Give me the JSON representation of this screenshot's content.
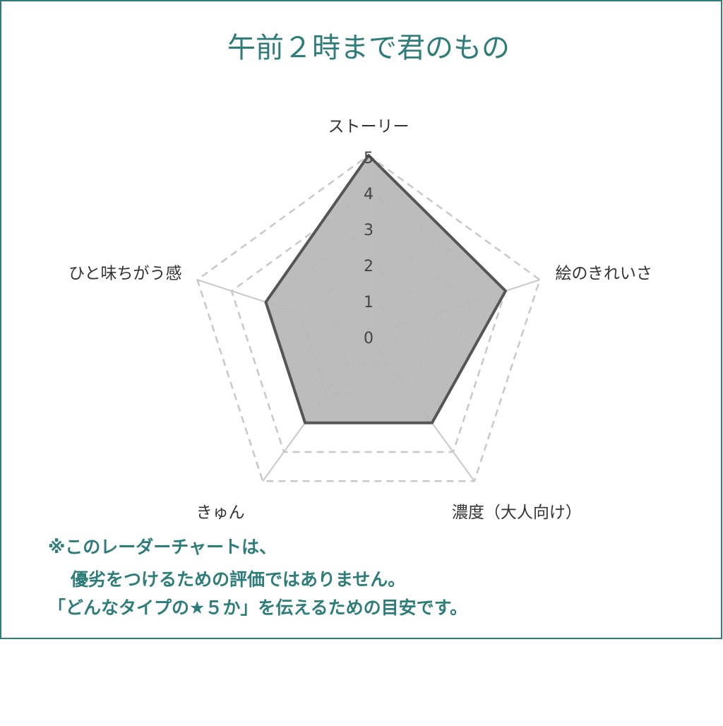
{
  "chart_data": {
    "type": "radar",
    "title": "午前２時まで君のもの",
    "categories": [
      "ストーリー",
      "絵のきれいさ",
      "濃度（大人向け）",
      "きゅん",
      "ひと味ちがう感"
    ],
    "values": [
      5,
      4,
      3,
      3,
      3
    ],
    "color": "#555555",
    "fill": "#b8b8b8",
    "rlim": [
      0,
      5
    ],
    "rticks": [
      0,
      1,
      2,
      3,
      4,
      5
    ],
    "grid": true
  },
  "note": [
    "※このレーダーチャートは、",
    "優劣をつけるための評価ではありません。",
    "「どんなタイプの★５か」を伝えるための目安です。"
  ]
}
